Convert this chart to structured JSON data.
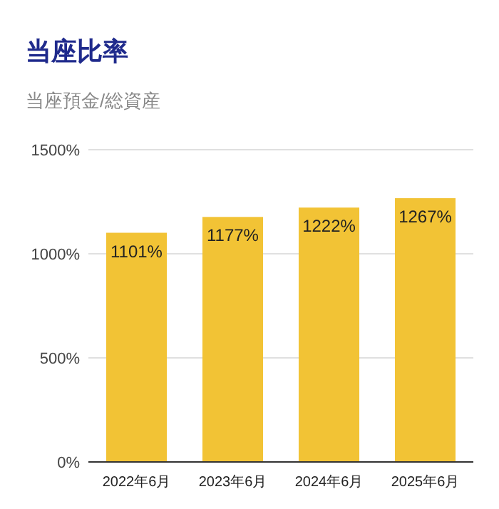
{
  "chart_data": {
    "type": "bar",
    "title": "当座比率",
    "subtitle": "当座預金/総資産",
    "categories": [
      "2022年6月",
      "2023年6月",
      "2024年6月",
      "2025年6月"
    ],
    "values": [
      1101,
      1177,
      1222,
      1267
    ],
    "value_labels": [
      "1101%",
      "1177%",
      "1222%",
      "1267%"
    ],
    "color": "#f2c335",
    "ylim": [
      0,
      1500
    ],
    "yticks": [
      {
        "value": 0,
        "label": "0%"
      },
      {
        "value": 500,
        "label": "500%"
      },
      {
        "value": 1000,
        "label": "1000%"
      },
      {
        "value": 1500,
        "label": "1500%"
      }
    ],
    "grid": "y"
  }
}
